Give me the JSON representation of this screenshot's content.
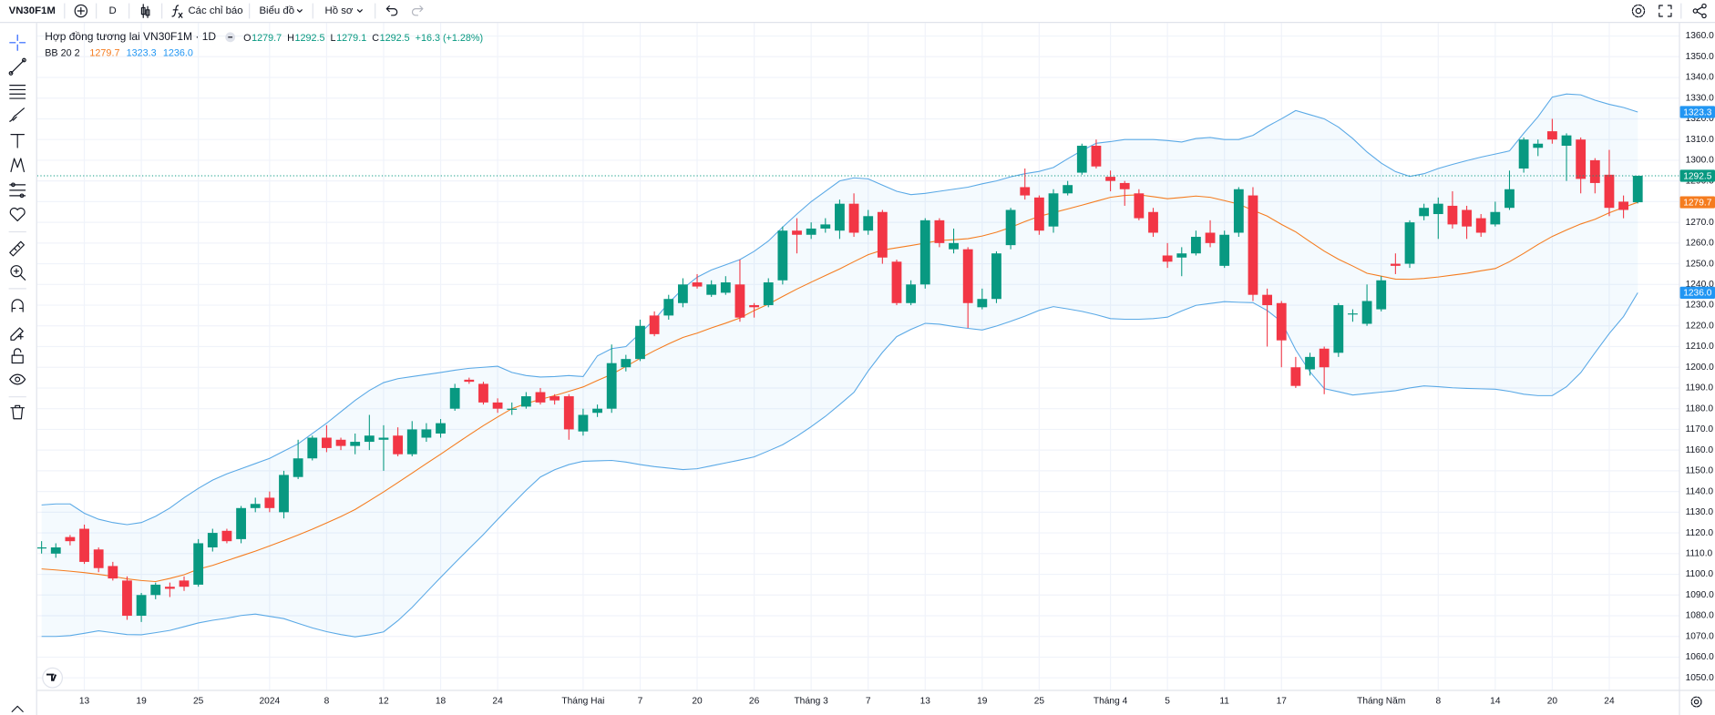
{
  "toolbar": {
    "symbol": "VN30F1M",
    "interval": "D",
    "indicators": "Các chỉ báo",
    "chart_menu": "Biểu đồ",
    "profile": "Hồ sơ"
  },
  "chart_data": {
    "type": "candlestick",
    "title": "Hợp đồng tương lai VN30F1M · 1D",
    "ohlc_prefixes": [
      "O",
      "H",
      "L",
      "C"
    ],
    "change_label": "+16.3 (+1.28%)",
    "up_color": "#089981",
    "down_color": "#f23645",
    "grid": true,
    "categories": [
      null,
      null,
      null,
      "13",
      null,
      null,
      null,
      "19",
      null,
      null,
      null,
      "25",
      null,
      null,
      null,
      null,
      "2024",
      null,
      null,
      null,
      "8",
      null,
      null,
      null,
      "12",
      null,
      null,
      null,
      "18",
      null,
      null,
      null,
      "24",
      null,
      null,
      null,
      null,
      null,
      "Tháng Hai",
      null,
      null,
      null,
      "7",
      null,
      null,
      null,
      "20",
      null,
      null,
      null,
      "26",
      null,
      null,
      null,
      "Tháng 3",
      null,
      null,
      null,
      "7",
      null,
      null,
      null,
      "13",
      null,
      null,
      null,
      "19",
      null,
      null,
      null,
      "25",
      null,
      null,
      null,
      null,
      "Tháng 4",
      null,
      null,
      null,
      "5",
      null,
      null,
      null,
      "11",
      null,
      null,
      null,
      "17",
      null,
      null,
      null,
      null,
      null,
      null,
      "Tháng Năm",
      null,
      null,
      null,
      "8",
      null,
      null,
      null,
      "14",
      null,
      null,
      null,
      "20",
      null,
      null,
      null,
      "24",
      null,
      null
    ],
    "open": [
      1113,
      1110,
      1118,
      1122,
      1112,
      1104,
      1097,
      1080,
      1090,
      1094,
      1097,
      1095,
      1113,
      1121,
      1117,
      1132,
      1137,
      1130,
      1147,
      1156,
      1166,
      1165,
      1162,
      1164,
      1165,
      1167,
      1158,
      1166,
      1168,
      1180,
      1194,
      1192,
      1183,
      1180,
      1181,
      1188,
      1186,
      1186,
      1169,
      1178,
      1180,
      1200,
      1204,
      1225,
      1225,
      1231,
      1241,
      1235,
      1236,
      1240,
      1230,
      1230,
      1242,
      1266,
      1264,
      1267,
      1266,
      1279,
      1266,
      1275,
      1251,
      1231,
      1240,
      1271,
      1257,
      1257,
      1229,
      1233,
      1259,
      1287,
      1282,
      1268,
      1284,
      1294,
      1307,
      1292,
      1289,
      1284,
      1275,
      1254,
      1253,
      1255,
      1265,
      1249,
      1265,
      1283,
      1235,
      1231,
      1200,
      1199,
      1209,
      1207,
      1226,
      1221,
      1228,
      1250,
      1250,
      1273,
      1274,
      1278,
      1276,
      1272,
      1269,
      1277,
      1296,
      1306,
      1314,
      1307,
      1310,
      1300,
      1293,
      1280,
      1279.7
    ],
    "high": [
      1116,
      1115,
      1119,
      1124,
      1113,
      1106,
      1099,
      1091,
      1096,
      1096,
      1099,
      1117,
      1122,
      1122,
      1133,
      1137,
      1140,
      1150,
      1165,
      1167,
      1172,
      1166,
      1168,
      1177,
      1172,
      1171,
      1174,
      1173,
      1175,
      1192,
      1195,
      1193,
      1185,
      1183,
      1188,
      1190,
      1187,
      1187,
      1180,
      1182,
      1211,
      1206,
      1223,
      1227,
      1235,
      1243,
      1245,
      1242,
      1244,
      1252,
      1231,
      1243,
      1268,
      1272,
      1270,
      1272,
      1281,
      1284,
      1276,
      1276,
      1252,
      1242,
      1272,
      1272,
      1267,
      1258,
      1238,
      1256,
      1277,
      1296,
      1283,
      1286,
      1290,
      1308,
      1310,
      1295,
      1290,
      1286,
      1277,
      1260,
      1258,
      1266,
      1271,
      1266,
      1287,
      1287,
      1238,
      1232,
      1205,
      1207,
      1210,
      1231,
      1228,
      1240,
      1244,
      1255,
      1271,
      1279,
      1282,
      1285,
      1278,
      1274,
      1280,
      1295,
      1311,
      1310,
      1320,
      1313,
      1311,
      1301,
      1305,
      1283,
      1292.5
    ],
    "low": [
      1110,
      1108,
      1114,
      1105,
      1101,
      1097,
      1078,
      1077,
      1088,
      1089,
      1092,
      1094,
      1111,
      1115,
      1115,
      1130,
      1130,
      1127,
      1146,
      1155,
      1159,
      1160,
      1158,
      1160,
      1150,
      1157,
      1157,
      1164,
      1166,
      1179,
      1192,
      1182,
      1178,
      1177,
      1180,
      1182,
      1182,
      1165,
      1167,
      1176,
      1178,
      1198,
      1203,
      1215,
      1223,
      1229,
      1238,
      1234,
      1235,
      1222,
      1224,
      1229,
      1240,
      1255,
      1262,
      1265,
      1262,
      1263,
      1264,
      1250,
      1230,
      1230,
      1238,
      1258,
      1255,
      1219,
      1228,
      1231,
      1257,
      1281,
      1264,
      1265,
      1283,
      1293,
      1296,
      1285,
      1278,
      1271,
      1263,
      1248,
      1244,
      1254,
      1258,
      1248,
      1263,
      1232,
      1210,
      1200,
      1190,
      1196,
      1187,
      1205,
      1222,
      1220,
      1227,
      1245,
      1248,
      1271,
      1262,
      1267,
      1262,
      1263,
      1268,
      1276,
      1294,
      1302,
      1308,
      1290,
      1284,
      1284,
      1273,
      1272,
      1279.1
    ],
    "close": [
      1113,
      1113,
      1116,
      1106,
      1103,
      1098,
      1080,
      1090,
      1095,
      1093,
      1094,
      1115,
      1120,
      1116,
      1132,
      1134,
      1132,
      1148,
      1156,
      1166,
      1161,
      1162,
      1164,
      1167,
      1166,
      1158,
      1170,
      1170,
      1173,
      1190,
      1193,
      1183,
      1180,
      1180,
      1186,
      1183,
      1184,
      1170,
      1177,
      1180,
      1202,
      1204,
      1220,
      1216,
      1233,
      1240,
      1239,
      1240,
      1241,
      1224,
      1229,
      1241,
      1266,
      1264,
      1267,
      1269,
      1279,
      1265,
      1273,
      1253,
      1231,
      1240,
      1271,
      1260,
      1260,
      1231,
      1233,
      1255,
      1276,
      1283,
      1266,
      1284,
      1288,
      1307,
      1297,
      1290,
      1286,
      1272,
      1265,
      1251,
      1255,
      1263,
      1260,
      1264,
      1286,
      1235,
      1230,
      1213,
      1191,
      1205,
      1200,
      1230,
      1226,
      1232,
      1242,
      1249,
      1270,
      1277,
      1279,
      1269,
      1268,
      1265,
      1275,
      1286,
      1310,
      1308,
      1310,
      1312,
      1291,
      1289,
      1277,
      1276,
      1292.5
    ],
    "indicator": {
      "label": "BB 20 2",
      "fill": "#2196f3",
      "series": [
        {
          "color": "#f57c1f",
          "values": [
            1102.6,
            1102.1,
            1101.5,
            1100.8,
            1100,
            1099,
            1097.8,
            1097,
            1096.5,
            1098,
            1099.8,
            1102.5,
            1104.3,
            1106.6,
            1108.9,
            1111.2,
            1113.7,
            1116.3,
            1119,
            1121.8,
            1124.8,
            1127.9,
            1131.3,
            1135.5,
            1139.8,
            1144.3,
            1148.9,
            1153.5,
            1158,
            1162.7,
            1167.3,
            1171.8,
            1176,
            1180,
            1182.5,
            1184.5,
            1186.3,
            1188.4,
            1190.5,
            1193.6,
            1196.6,
            1200.4,
            1204.3,
            1208,
            1211.3,
            1214.4,
            1216.5,
            1219,
            1221.3,
            1223.8,
            1227.4,
            1230.5,
            1234.2,
            1237.8,
            1241.1,
            1244.3,
            1247.5,
            1251,
            1254.4,
            1256.6,
            1257.7,
            1258.8,
            1260,
            1261.2,
            1261.6,
            1262.1,
            1263.4,
            1265.2,
            1267.6,
            1270.4,
            1272.9,
            1274.7,
            1276.5,
            1278.3,
            1280.2,
            1282.1,
            1283,
            1283.3,
            1282.4,
            1281.4,
            1282,
            1282.7,
            1282.1,
            1280.5,
            1278.8,
            1275.8,
            1273,
            1269,
            1265.4,
            1260.7,
            1256.1,
            1252.2,
            1248.9,
            1245.4,
            1244,
            1242.6,
            1242.5,
            1242.9,
            1243.6,
            1244.5,
            1245.4,
            1246.6,
            1247.7,
            1251,
            1255,
            1259.3,
            1263.2,
            1266.3,
            1269.2,
            1271.5,
            1274.6,
            1277.2,
            1279.7
          ]
        },
        {
          "color": "#5aa9e6",
          "values": [
            1133.5,
            1134,
            1134,
            1129.5,
            1126.6,
            1125,
            1124,
            1125,
            1128,
            1132,
            1137,
            1141.5,
            1145.5,
            1148.5,
            1151,
            1153.5,
            1156,
            1159.5,
            1163,
            1168,
            1173,
            1178.5,
            1184,
            1188.8,
            1192.6,
            1194.5,
            1195.5,
            1196.5,
            1197.5,
            1198.6,
            1199.5,
            1200,
            1200.5,
            1197.5,
            1196,
            1195.3,
            1195.5,
            1196,
            1195.5,
            1205.5,
            1209,
            1210,
            1216.5,
            1223,
            1231,
            1238,
            1243.5,
            1247,
            1249.5,
            1252,
            1256,
            1261,
            1267.7,
            1274,
            1280,
            1285,
            1290,
            1291.5,
            1291,
            1288,
            1285,
            1283.4,
            1284,
            1285,
            1286,
            1287,
            1288.6,
            1290,
            1292,
            1293.5,
            1294.6,
            1296.5,
            1300.7,
            1304.7,
            1308.2,
            1309,
            1310,
            1310,
            1310,
            1309.5,
            1308.8,
            1310.5,
            1311,
            1310,
            1310,
            1312,
            1316.3,
            1320,
            1324,
            1322,
            1320,
            1316,
            1310.5,
            1304,
            1298.6,
            1294.5,
            1292.2,
            1293.5,
            1296,
            1298,
            1299.8,
            1301.5,
            1303,
            1304.5,
            1313,
            1321,
            1330.5,
            1332,
            1331.6,
            1329,
            1327,
            1325.5,
            1323.3
          ]
        },
        {
          "color": "#5aa9e6",
          "last_label": "1236.0",
          "values": [
            1070,
            1070,
            1070.4,
            1071.5,
            1072.7,
            1071.8,
            1070.9,
            1070.8,
            1071.8,
            1072.9,
            1074.7,
            1076.5,
            1077.8,
            1078.8,
            1080.1,
            1080.8,
            1079.7,
            1078.6,
            1076.3,
            1074.1,
            1072.3,
            1070.9,
            1069.8,
            1070.8,
            1072.2,
            1077.6,
            1084,
            1091.3,
            1098.5,
            1105.5,
            1112.4,
            1119.2,
            1126.5,
            1133.6,
            1140.6,
            1147,
            1150.5,
            1153,
            1154.6,
            1154.8,
            1155,
            1154.2,
            1153,
            1152,
            1151.3,
            1150.6,
            1151,
            1152.4,
            1153.8,
            1155.2,
            1156.7,
            1159.6,
            1162.6,
            1166.7,
            1171.3,
            1176.3,
            1182,
            1187.9,
            1198.2,
            1207.2,
            1214.8,
            1218.3,
            1221.2,
            1220.8,
            1219.7,
            1218.8,
            1218,
            1219.9,
            1222.2,
            1224.7,
            1227.5,
            1229.3,
            1228.2,
            1227,
            1225.4,
            1223.5,
            1223.2,
            1223.2,
            1223.5,
            1224.2,
            1227.2,
            1229.9,
            1230.8,
            1231.7,
            1231.4,
            1231.2,
            1227.4,
            1222,
            1208.4,
            1197.8,
            1189.7,
            1188.2,
            1186.6,
            1187.3,
            1188,
            1188.7,
            1190,
            1191,
            1190.6,
            1190.1,
            1189.8,
            1189.6,
            1189.4,
            1188.4,
            1187,
            1186.3,
            1186.3,
            1190.6,
            1197.4,
            1207,
            1216.3,
            1224.5,
            1236
          ]
        }
      ]
    },
    "ylim": [
      1044.2,
      1366.3
    ],
    "yticks": [
      {
        "value": 1050,
        "label": "1050.0"
      },
      {
        "value": 1060,
        "label": "1060.0"
      },
      {
        "value": 1070,
        "label": "1070.0"
      },
      {
        "value": 1080,
        "label": "1080.0"
      },
      {
        "value": 1090,
        "label": "1090.0"
      },
      {
        "value": 1100,
        "label": "1100.0"
      },
      {
        "value": 1110,
        "label": "1110.0"
      },
      {
        "value": 1120,
        "label": "1120.0"
      },
      {
        "value": 1130,
        "label": "1130.0"
      },
      {
        "value": 1140,
        "label": "1140.0"
      },
      {
        "value": 1150,
        "label": "1150.0"
      },
      {
        "value": 1160,
        "label": "1160.0"
      },
      {
        "value": 1170,
        "label": "1170.0"
      },
      {
        "value": 1180,
        "label": "1180.0"
      },
      {
        "value": 1190,
        "label": "1190.0"
      },
      {
        "value": 1200,
        "label": "1200.0"
      },
      {
        "value": 1210,
        "label": "1210.0"
      },
      {
        "value": 1220,
        "label": "1220.0"
      },
      {
        "value": 1230,
        "label": "1230.0"
      },
      {
        "value": 1240,
        "label": "1240.0"
      },
      {
        "value": 1250,
        "label": "1250.0"
      },
      {
        "value": 1260,
        "label": "1260.0"
      },
      {
        "value": 1270,
        "label": "1270.0"
      },
      {
        "value": 1280,
        "label": "1280.0"
      },
      {
        "value": 1290,
        "label": "1290.0"
      },
      {
        "value": 1300,
        "label": "1300.0"
      },
      {
        "value": 1310,
        "label": "1310.0"
      },
      {
        "value": 1320,
        "label": "1320.0"
      },
      {
        "value": 1330,
        "label": "1330.0"
      },
      {
        "value": 1340,
        "label": "1340.0"
      },
      {
        "value": 1350,
        "label": "1350.0"
      },
      {
        "value": 1360,
        "label": "1360.0"
      }
    ]
  }
}
